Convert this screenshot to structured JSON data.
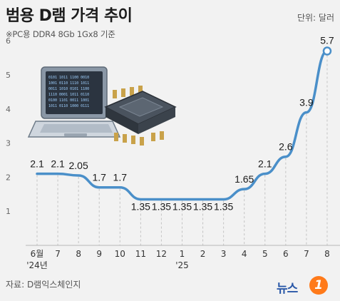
{
  "header": {
    "title": "범용 D램 가격 추이",
    "unit": "단위: 달러",
    "subtitle": "※PC용 DDR4 8Gb 1Gx8 기준"
  },
  "footer": {
    "source": "자료: D램익스체인지",
    "logo_text": "뉴스",
    "logo_badge": "1"
  },
  "colors": {
    "line": "#4a8fc9",
    "background": "#f2f2f2",
    "logo_text": "#2a58a8",
    "logo_badge": "#ff7a1a"
  },
  "illustration": "laptop-and-chip-icon",
  "chart_data": {
    "type": "line",
    "title": "범용 D램 가격 추이",
    "subtitle": "※PC용 DDR4 8Gb 1Gx8 기준",
    "ylabel": "단위: 달러",
    "ylim": [
      0,
      6
    ],
    "yticks": [
      "1",
      "2",
      "3",
      "4",
      "5",
      "6"
    ],
    "grid": false,
    "categories": [
      "6월",
      "7",
      "8",
      "9",
      "10",
      "11",
      "12",
      "1",
      "2",
      "3",
      "4",
      "5",
      "6",
      "7",
      "8"
    ],
    "category_sublabels": {
      "0": "'24년",
      "7": "'25"
    },
    "values": [
      2.1,
      2.1,
      2.05,
      1.7,
      1.7,
      1.35,
      1.35,
      1.35,
      1.35,
      1.35,
      1.65,
      2.1,
      2.6,
      3.9,
      5.7
    ],
    "value_labels": [
      "2.1",
      "2.1",
      "2.05",
      "1.7",
      "1.7",
      "1.35",
      "1.35",
      "1.35",
      "1.35",
      "1.35",
      "1.65",
      "2.1",
      "2.6",
      "3.9",
      "5.7"
    ]
  }
}
